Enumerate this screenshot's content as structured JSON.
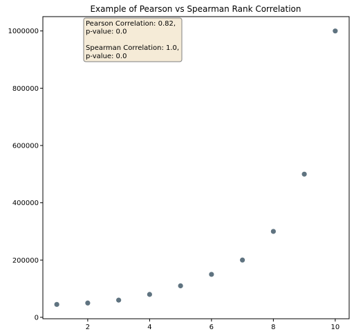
{
  "chart_data": {
    "type": "scatter",
    "title": "Example of Pearson vs Spearman Rank Correlation",
    "xlabel": "",
    "ylabel": "",
    "xlim": [
      0.55,
      10.45
    ],
    "ylim": [
      -5000,
      1050000
    ],
    "x_ticks": [
      2,
      4,
      6,
      8,
      10
    ],
    "x_tick_labels": [
      "2",
      "4",
      "6",
      "8",
      "10"
    ],
    "y_ticks": [
      0,
      200000,
      400000,
      600000,
      800000,
      1000000
    ],
    "y_tick_labels": [
      "0",
      "200000",
      "400000",
      "600000",
      "800000",
      "1000000"
    ],
    "grid": false,
    "point_color": "#5f7380",
    "series": [
      {
        "x": [
          1,
          2,
          3,
          4,
          5,
          6,
          7,
          8,
          9,
          10
        ],
        "y": [
          45000,
          50000,
          60000,
          80000,
          110000,
          150000,
          200000,
          300000,
          500000,
          1000000
        ]
      }
    ],
    "annotation": {
      "lines": [
        "Pearson Correlation: 0.82,",
        "p-value: 0.0",
        "",
        "Spearman Correlation: 1.0,",
        "p-value: 0.0"
      ],
      "background": "#f5ebd7",
      "border": "#7f7f7f"
    }
  }
}
